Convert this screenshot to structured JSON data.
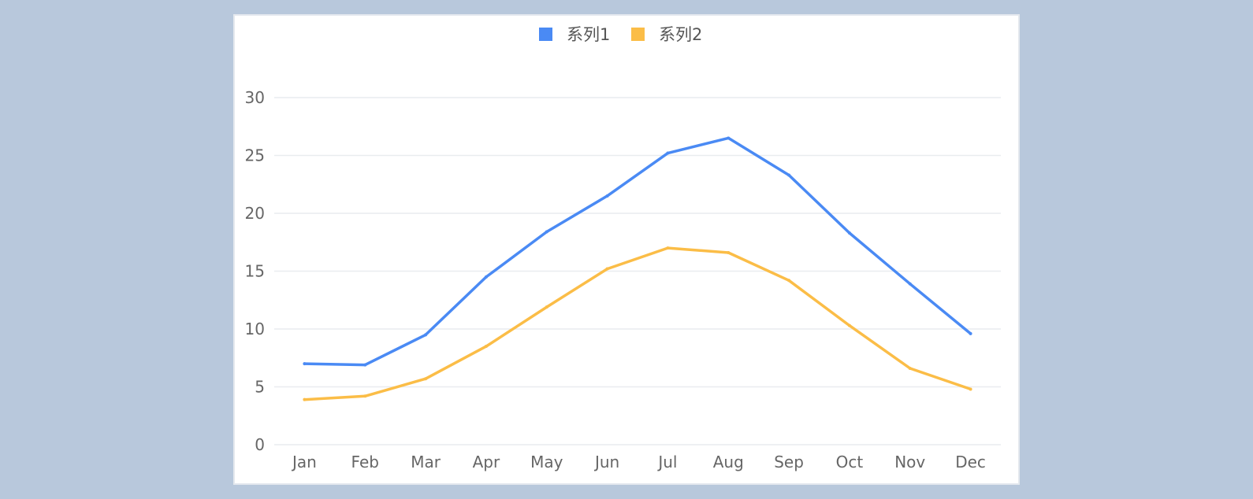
{
  "chart_data": {
    "type": "line",
    "categories": [
      "Jan",
      "Feb",
      "Mar",
      "Apr",
      "May",
      "Jun",
      "Jul",
      "Aug",
      "Sep",
      "Oct",
      "Nov",
      "Dec"
    ],
    "series": [
      {
        "name": "系列1",
        "color": "#4a8af4",
        "values": [
          7.0,
          6.9,
          9.5,
          14.5,
          18.4,
          21.5,
          25.2,
          26.5,
          23.3,
          18.3,
          13.9,
          9.6
        ]
      },
      {
        "name": "系列2",
        "color": "#fbbd47",
        "values": [
          3.9,
          4.2,
          5.7,
          8.5,
          11.9,
          15.2,
          17.0,
          16.6,
          14.2,
          10.3,
          6.6,
          4.8
        ]
      }
    ],
    "yticks": [
      0,
      5,
      10,
      15,
      20,
      25,
      30
    ],
    "ylim": [
      0,
      30
    ],
    "grid": true,
    "legend_position": "top-center"
  }
}
